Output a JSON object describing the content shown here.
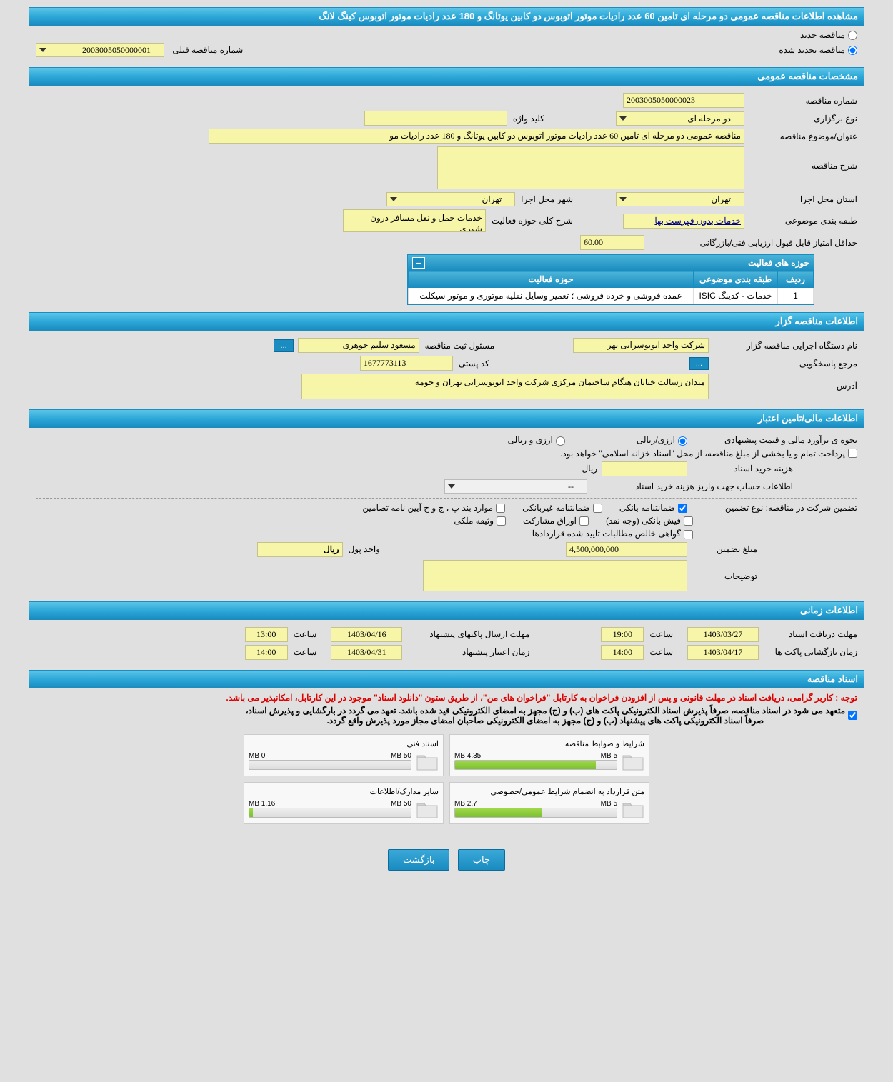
{
  "page_title": "مشاهده اطلاعات مناقصه عمومی دو مرحله ای تامین 60 عدد رادیات موتور اتوبوس دو کابین یوتانگ و 180 عدد رادیات موتور اتوبوس کینگ لانگ",
  "tender_type": {
    "new_label": "مناقصه جدید",
    "renewed_label": "مناقصه تجدید شده",
    "selected": "renewed"
  },
  "prev_number_label": "شماره مناقصه قبلی",
  "prev_number": "2003005050000001",
  "section_general": "مشخصات مناقصه عمومی",
  "section_tenderer": "اطلاعات مناقصه گزار",
  "section_financial": "اطلاعات مالی/تامین اعتبار",
  "section_time": "اطلاعات زمانی",
  "section_docs": "اسناد مناقصه",
  "general": {
    "number_label": "شماره مناقصه",
    "number": "2003005050000023",
    "holding_type_label": "نوع برگزاری",
    "holding_type": "دو مرحله ای",
    "keyword_label": "کلید واژه",
    "keyword": "",
    "subject_label": "عنوان/موضوع مناقصه",
    "subject": "مناقصه عمومی دو مرحله ای تامین 60 عدد رادیات موتور اتوبوس دو کابین یوتانگ و 180 عدد رادیات مو",
    "desc_label": "شرح مناقصه",
    "desc": "",
    "province_label": "استان محل اجرا",
    "province": "تهران",
    "city_label": "شهر محل اجرا",
    "city": "تهران",
    "class_label": "طبقه بندی موضوعی",
    "class": "خدمات بدون فهرست بها",
    "scope_label": "شرح کلی حوزه فعالیت",
    "scope": "خدمات حمل و نقل مسافر درون شهری",
    "min_score_label": "حداقل امتیاز قابل قبول ارزیابی فنی/بازرگانی",
    "min_score": "60.00"
  },
  "activity": {
    "header": "حوزه های فعالیت",
    "col_row": "ردیف",
    "col_class": "طبقه بندی موضوعی",
    "col_scope": "حوزه فعالیت",
    "rows": [
      {
        "n": "1",
        "class": "خدمات - کدینگ ISIC",
        "scope": "عمده فروشی و خرده فروشی ؛ تعمیر وسایل نقلیه موتوری و موتور سیکلت"
      }
    ]
  },
  "tenderer": {
    "org_label": "نام دستگاه اجرایی مناقصه گزار",
    "org": "شرکت واحد اتوبوسرانی تهر",
    "reg_label": "مسئول ثبت مناقصه",
    "reg": "مسعود سلیم جوهری",
    "respond_label": "مرجع پاسخگویی",
    "respond_btn": "...",
    "postal_label": "کد پستی",
    "postal": "1677773113",
    "address_label": "آدرس",
    "address": "میدان رسالت خیابان هنگام ساختمان مرکزی شرکت واحد اتوبوسرانی تهران و حومه"
  },
  "financial": {
    "estimate_label": "نحوه ی برآورد مالی و قیمت پیشنهادی",
    "rial_option": "ارزی/ریالی",
    "currency_option": "ارزی و ریالی",
    "treasury_note": "پرداخت تمام و یا بخشی از مبلغ مناقصه، از محل \"اسناد خزانه اسلامی\" خواهد بود.",
    "doc_cost_label": "هزینه خرید اسناد",
    "doc_cost_unit": "ریال",
    "account_label": "اطلاعات حساب جهت واریز هزینه خرید اسناد",
    "account_value": "--",
    "guarantee_label": "تضمین شرکت در مناقصه:     نوع تضمین",
    "g1": "ضمانتنامه بانکی",
    "g2": "ضمانتنامه غیربانکی",
    "g3": "موارد بند پ ، ج و خ آیین نامه تضامین",
    "g4": "فیش بانکی (وجه نقد)",
    "g5": "اوراق مشارکت",
    "g6": "وثیقه ملکی",
    "g7": "گواهی خالص مطالبات تایید شده قراردادها",
    "amount_label": "مبلغ تضمین",
    "amount": "4,500,000,000",
    "unit_label": "واحد پول",
    "unit": "ریال",
    "notes_label": "توضیحات"
  },
  "time": {
    "deadline_label": "مهلت دریافت اسناد",
    "deadline_date": "1403/03/27",
    "time_label": "ساعت",
    "deadline_time": "19:00",
    "send_label": "مهلت ارسال پاکتهای پیشنهاد",
    "send_date": "1403/04/16",
    "send_time": "13:00",
    "open_label": "زمان بازگشایی پاکت ها",
    "open_date": "1403/04/17",
    "open_time": "14:00",
    "valid_label": "زمان اعتبار پیشنهاد",
    "valid_date": "1403/04/31",
    "valid_time": "14:00"
  },
  "docs": {
    "red_note": "توجه : کاربر گرامی، دریافت اسناد در مهلت قانونی و پس از افزودن فراخوان به کارتابل \"فراخوان های من\"، از طریق ستون \"دانلود اسناد\" موجود در این کارتابل، امکانپذیر می باشد.",
    "black_note1": "متعهد می شود در اسناد مناقصه، صرفاً پذیرش اسناد الکترونیکی پاکت های (ب) و (ج) مجهز به امضای الکترونیکی قید شده باشد. تعهد می گردد در بارگشایی و پذیرش اسناد،",
    "black_note2": "صرفاً اسناد الکترونیکی پاکت های پیشنهاد (ب) و (ج) مجهز به امضای الکترونیکی صاحبان امضای مجاز مورد پذیرش واقع گردد.",
    "items": [
      {
        "title": "شرایط و ضوابط مناقصه",
        "used": "4.35 MB",
        "total": "5 MB",
        "pct": 87
      },
      {
        "title": "اسناد فنی",
        "used": "0 MB",
        "total": "50 MB",
        "pct": 0
      },
      {
        "title": "متن قرارداد به انضمام شرایط عمومی/خصوصی",
        "used": "2.7 MB",
        "total": "5 MB",
        "pct": 54
      },
      {
        "title": "سایر مدارک/اطلاعات",
        "used": "1.16 MB",
        "total": "50 MB",
        "pct": 2
      }
    ]
  },
  "buttons": {
    "print": "چاپ",
    "back": "بازگشت"
  },
  "colors": {
    "header_bg": "#2da8d8",
    "yellow": "#f7f5a8",
    "progress_green": "#8fd040"
  }
}
